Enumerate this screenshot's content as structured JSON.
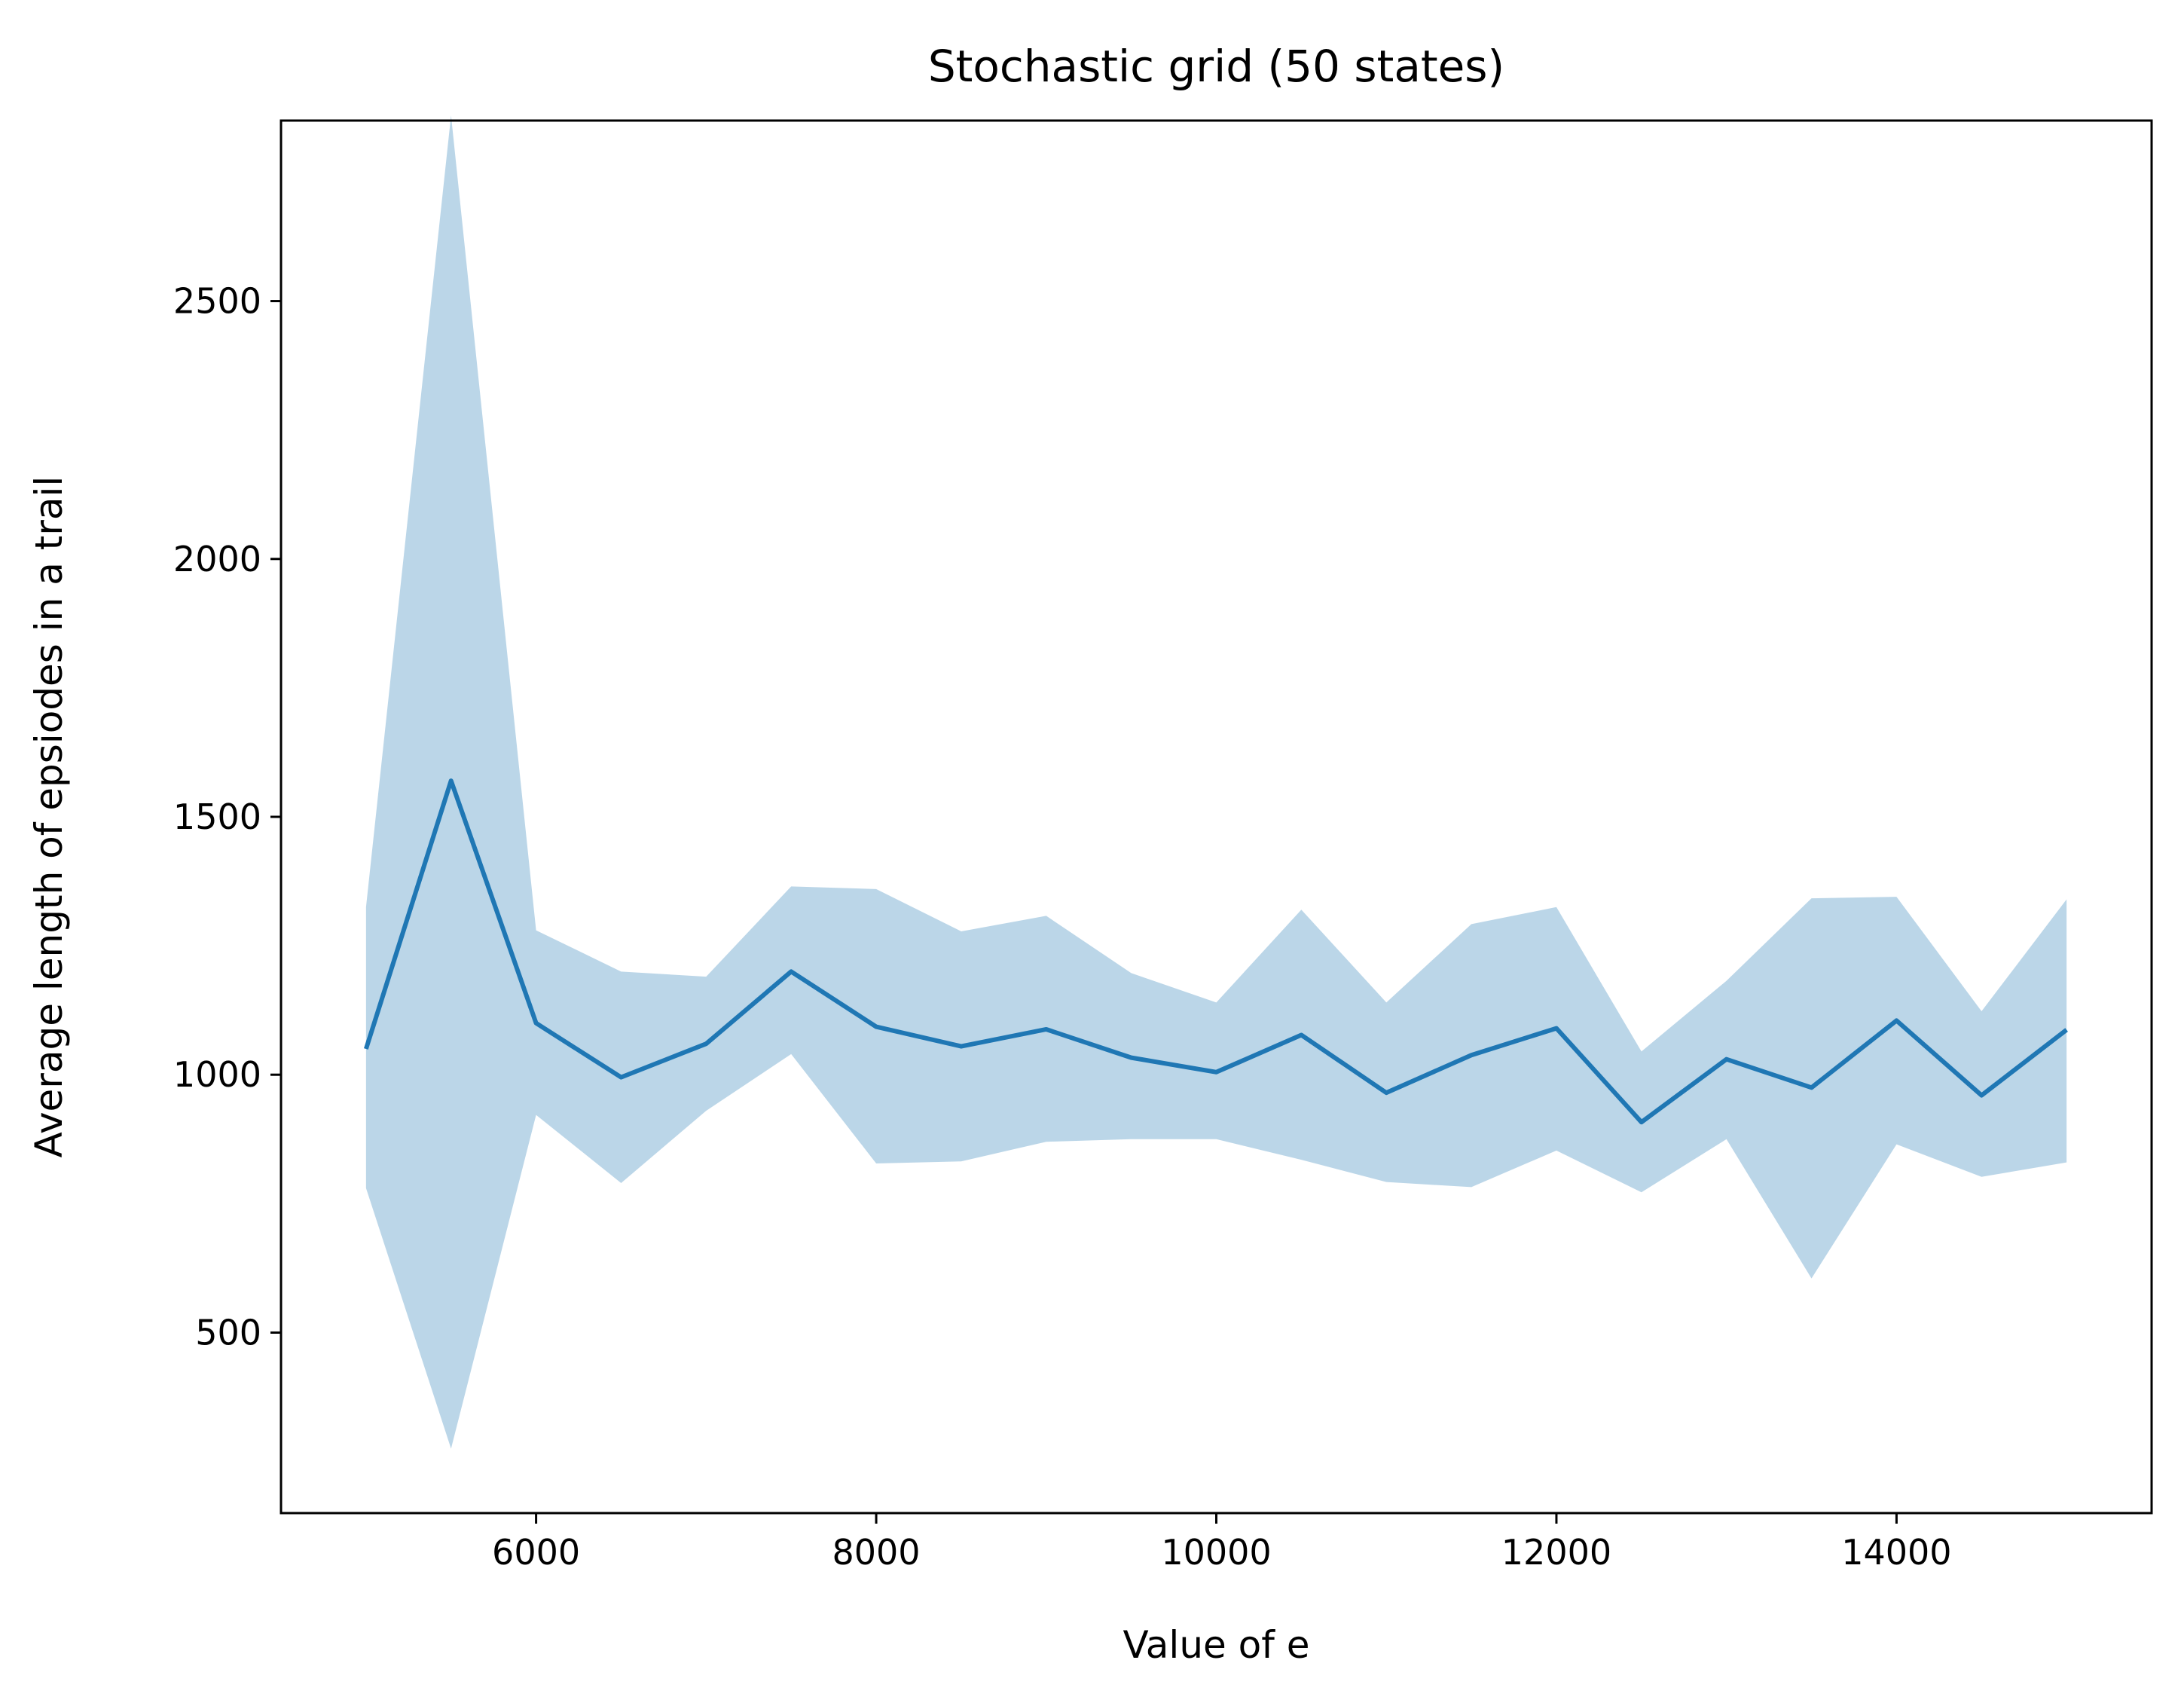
{
  "chart_data": {
    "type": "line",
    "title": "Stochastic grid (50 states)",
    "xlabel": "Value of e",
    "ylabel": "Average length of epsiodes in a trail",
    "xlim": [
      4500,
      15500
    ],
    "ylim": [
      150,
      2850
    ],
    "x_ticks": [
      6000,
      8000,
      10000,
      12000,
      14000
    ],
    "y_ticks": [
      500,
      1000,
      1500,
      2000,
      2500
    ],
    "grid": false,
    "colors": {
      "line": "#1f77b4",
      "band": "#1f77b4"
    },
    "series": [
      {
        "x": [
          5000,
          5500,
          6000,
          6500,
          7000,
          7500,
          8000,
          8500,
          9000,
          9500,
          10000,
          10500,
          11000,
          11500,
          12000,
          12500,
          13000,
          13500,
          14000,
          14500,
          15000
        ],
        "values": [
          1050,
          1570,
          1100,
          995,
          1060,
          1200,
          1093,
          1055,
          1088,
          1033,
          1005,
          1077,
          965,
          1038,
          1090,
          908,
          1030,
          975,
          1105,
          960,
          1087
        ],
        "upper": [
          1325,
          2860,
          1280,
          1200,
          1190,
          1365,
          1360,
          1278,
          1308,
          1197,
          1140,
          1320,
          1140,
          1292,
          1325,
          1045,
          1182,
          1342,
          1345,
          1123,
          1340
        ],
        "lower": [
          780,
          275,
          922,
          790,
          930,
          1040,
          828,
          832,
          870,
          875,
          875,
          835,
          792,
          782,
          853,
          772,
          875,
          605,
          865,
          802,
          830
        ]
      }
    ]
  }
}
